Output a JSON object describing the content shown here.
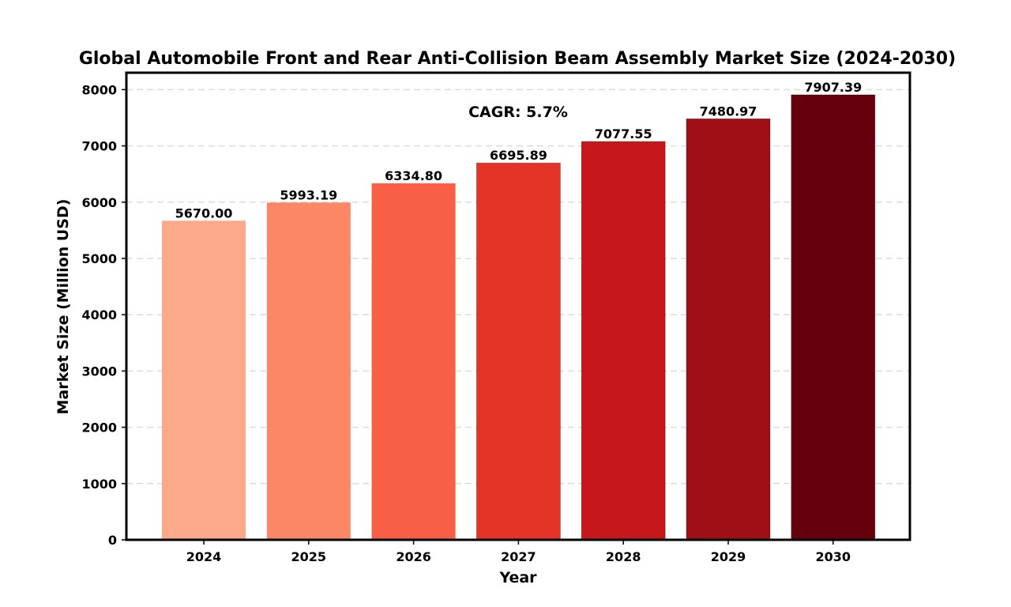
{
  "chart_data": {
    "type": "bar",
    "title": "Global Automobile Front and Rear Anti-Collision Beam Assembly Market Size (2024-2030)",
    "xlabel": "Year",
    "ylabel": "Market Size (Million USD)",
    "categories": [
      "2024",
      "2025",
      "2026",
      "2027",
      "2028",
      "2029",
      "2030"
    ],
    "values": [
      5670.0,
      5993.19,
      6334.8,
      6695.89,
      7077.55,
      7480.97,
      7907.39
    ],
    "value_labels": [
      "5670.00",
      "5993.19",
      "6334.80",
      "6695.89",
      "7077.55",
      "7480.97",
      "7907.39"
    ],
    "bar_colors": [
      "#fca98b",
      "#fc8767",
      "#f85f44",
      "#e63328",
      "#c5171c",
      "#9e0f16",
      "#67000d"
    ],
    "ylim": [
      0,
      8300
    ],
    "yticks": [
      0,
      1000,
      2000,
      3000,
      4000,
      5000,
      6000,
      7000,
      8000
    ],
    "grid": "y-dashed",
    "legend": "none",
    "annotation": "CAGR: 5.7%"
  }
}
